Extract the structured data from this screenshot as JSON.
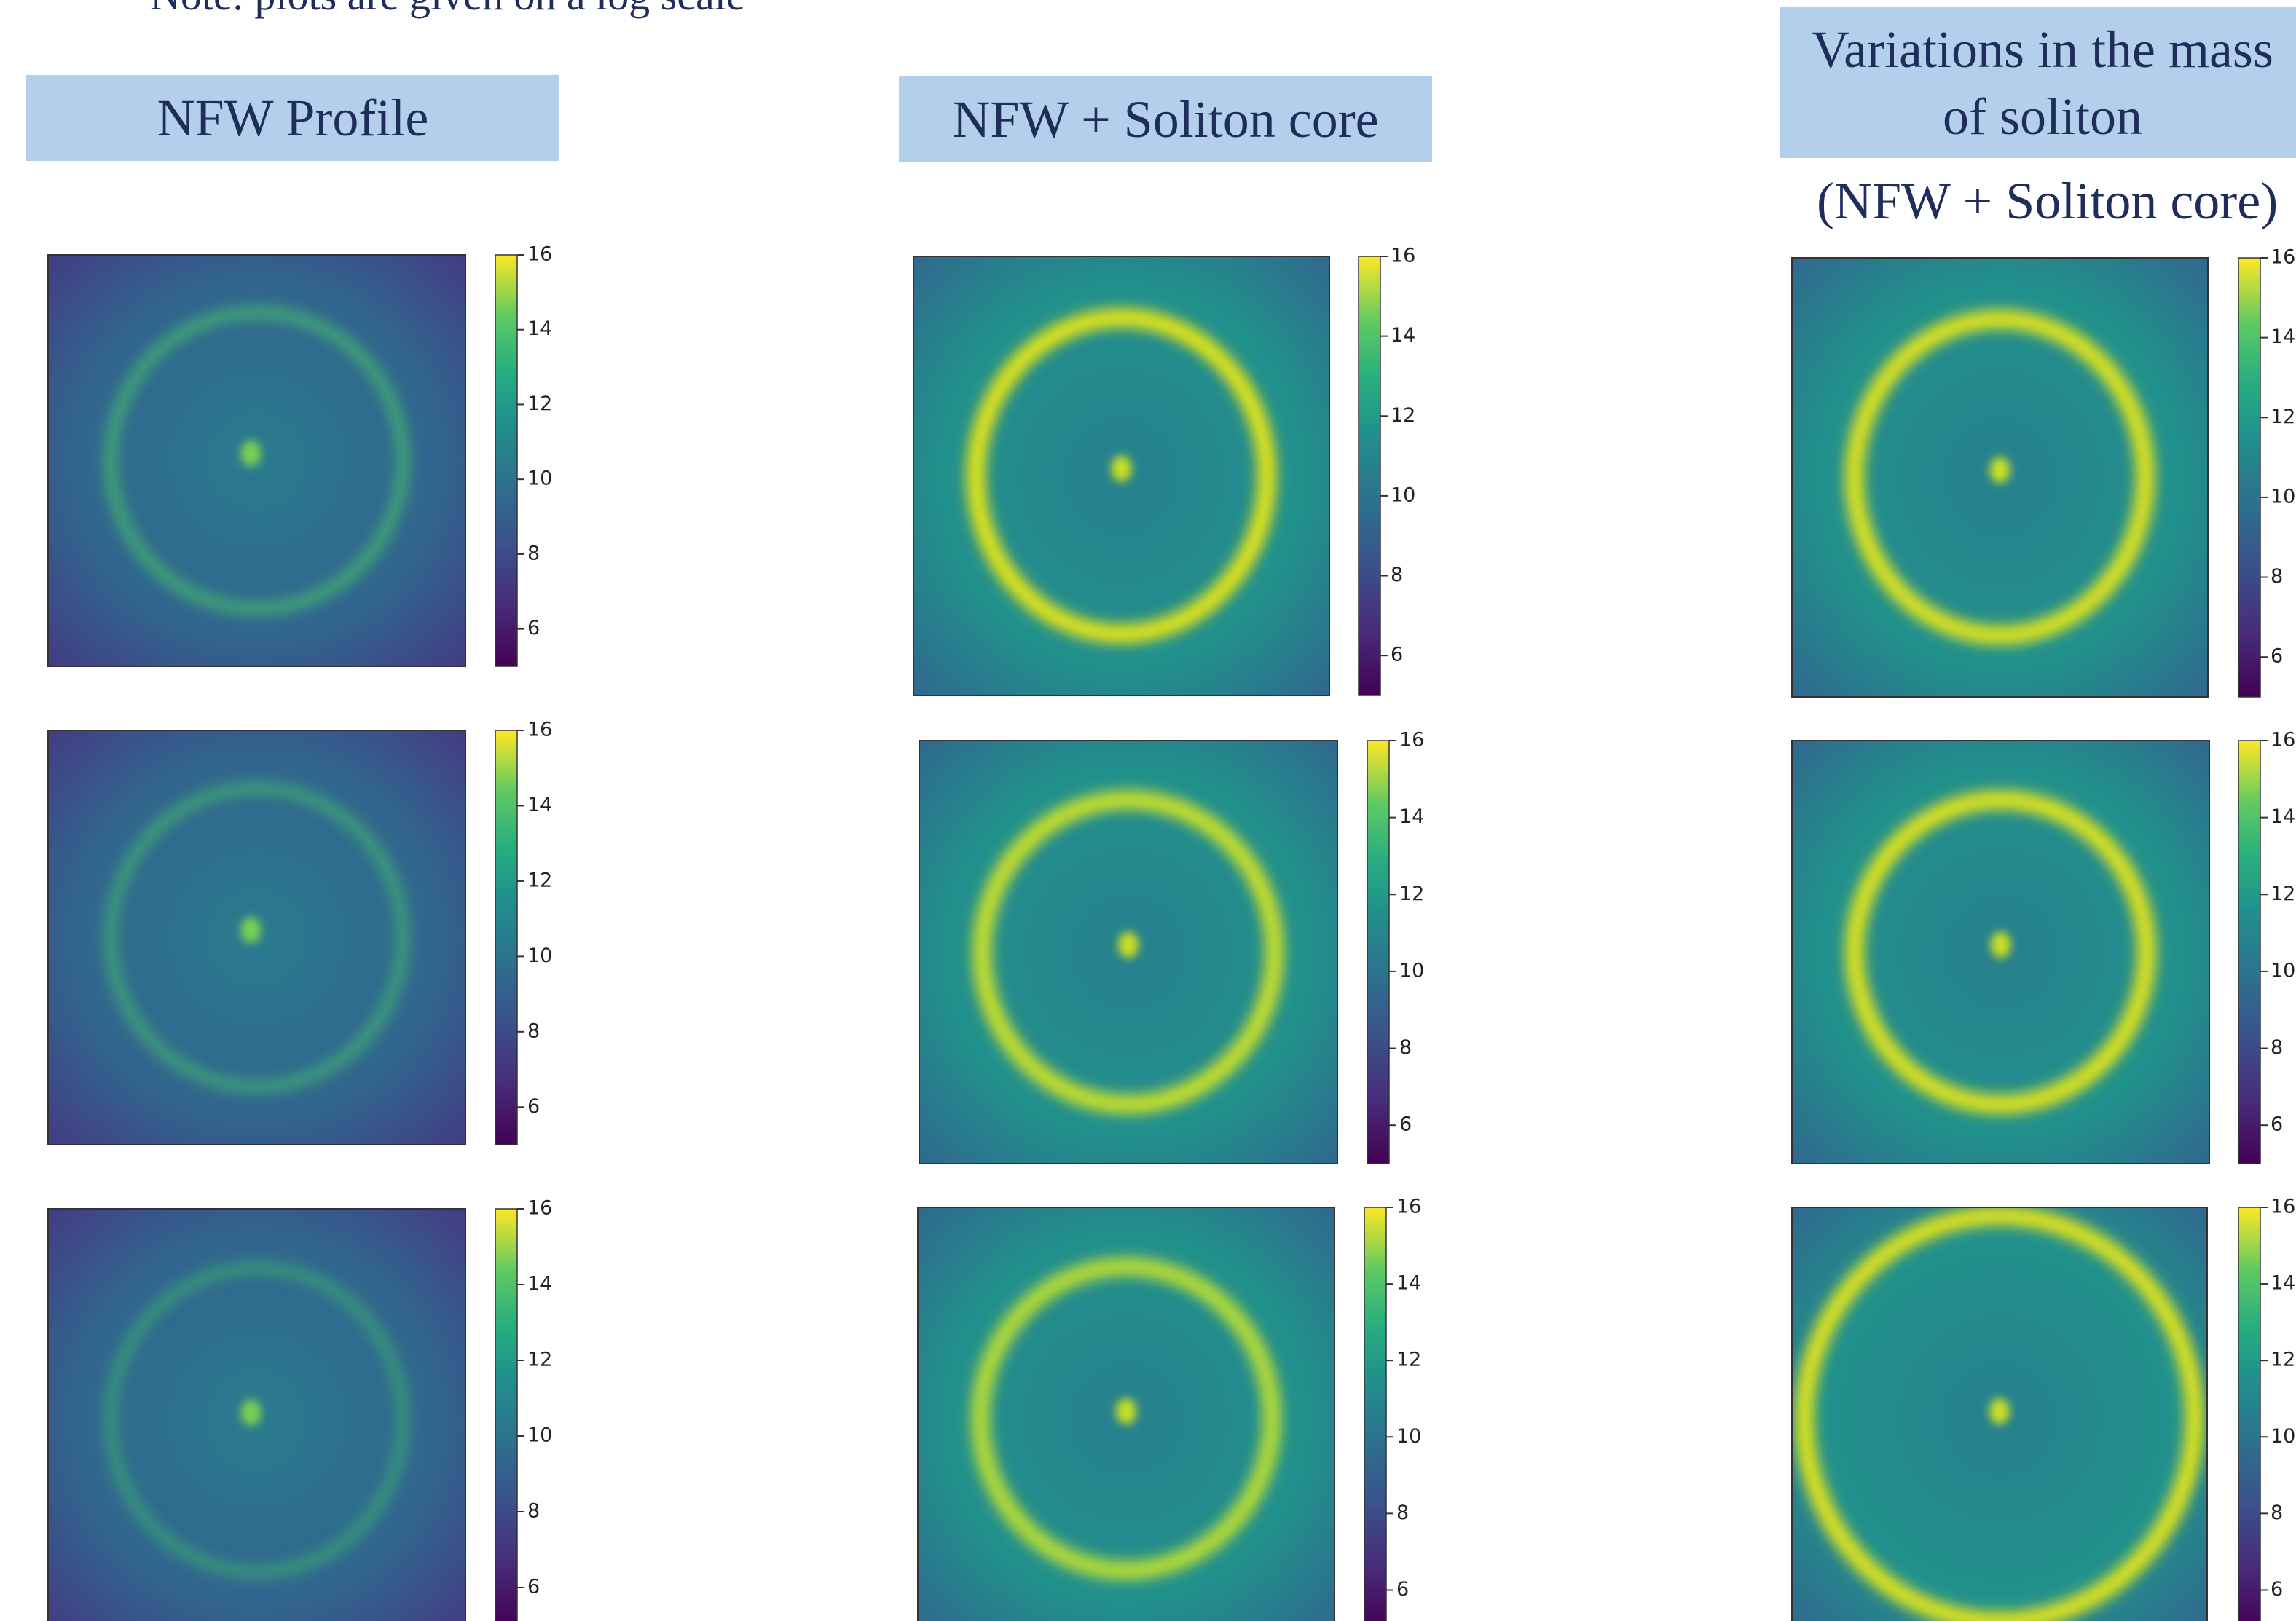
{
  "note": "Note: plots are given on a log scale",
  "columns": [
    {
      "title": "NFW Profile"
    },
    {
      "title": "NFW + Soliton core"
    },
    {
      "title": "Variations in the mass of soliton",
      "subtitle": "(NFW + Soliton core)"
    }
  ],
  "colorbar": {
    "lim": [
      5,
      16
    ],
    "ticks": [
      6,
      8,
      10,
      12,
      14,
      16
    ]
  }
}
